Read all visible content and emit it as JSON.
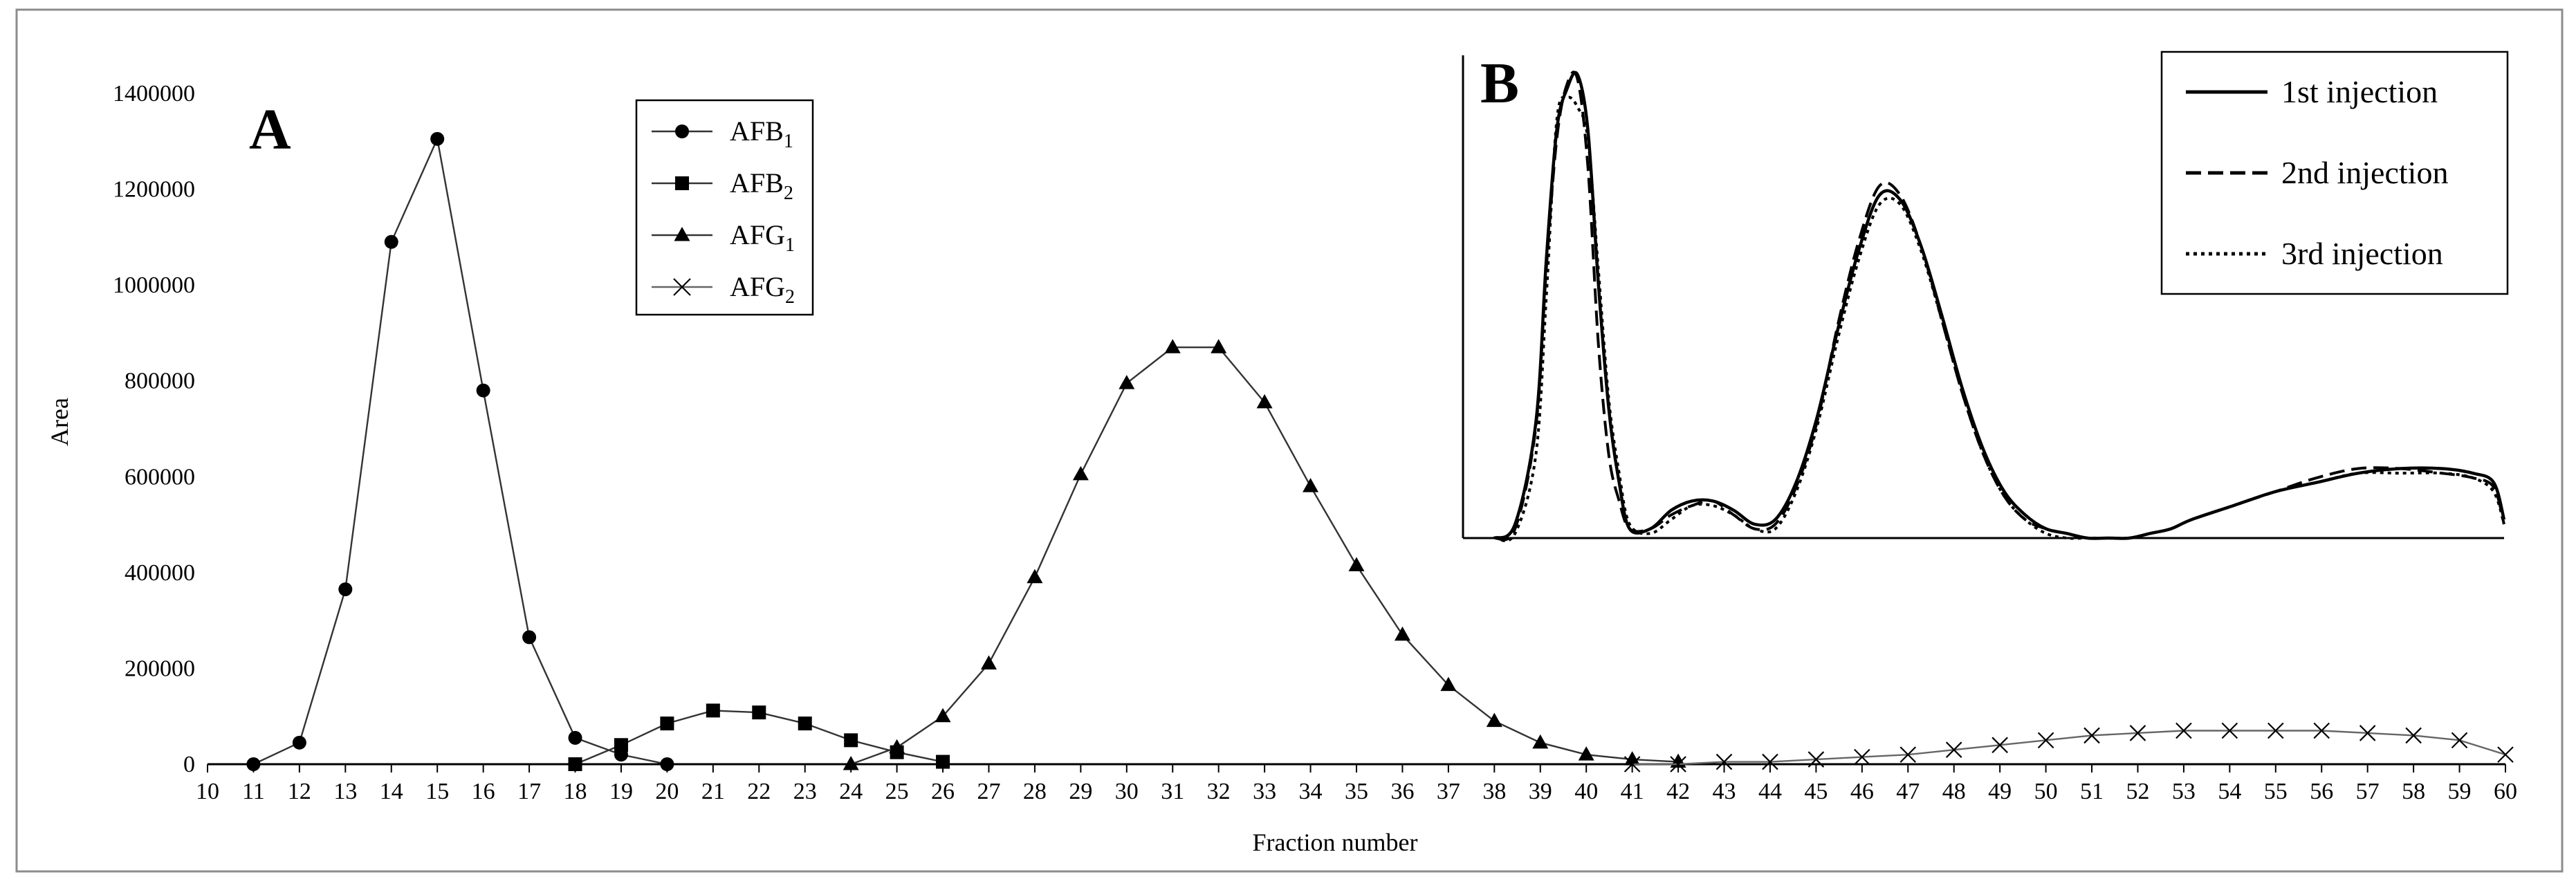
{
  "chart_data": [
    {
      "type": "line",
      "panel_label": "A",
      "xlabel": "Fraction number",
      "ylabel": "Area",
      "xlim": [
        10,
        60
      ],
      "ylim": [
        0,
        1400000
      ],
      "x_ticks": [
        10,
        11,
        12,
        13,
        14,
        15,
        16,
        17,
        18,
        19,
        20,
        21,
        22,
        23,
        24,
        25,
        26,
        27,
        28,
        29,
        30,
        31,
        32,
        33,
        34,
        35,
        36,
        37,
        38,
        39,
        40,
        41,
        42,
        43,
        44,
        45,
        46,
        47,
        48,
        49,
        50,
        51,
        52,
        53,
        54,
        55,
        56,
        57,
        58,
        59,
        60
      ],
      "y_ticks": [
        0,
        200000,
        400000,
        600000,
        800000,
        1000000,
        1200000,
        1400000
      ],
      "grid": false,
      "legend_position": "top-center",
      "series": [
        {
          "name": "AFB",
          "subscript": "1",
          "marker": "circle",
          "x": [
            11,
            12,
            13,
            14,
            15,
            16,
            17,
            18,
            19,
            20
          ],
          "y": [
            0,
            45000,
            365000,
            1090000,
            1305000,
            780000,
            265000,
            55000,
            20000,
            0
          ]
        },
        {
          "name": "AFB",
          "subscript": "2",
          "marker": "square",
          "x": [
            18,
            19,
            20,
            21,
            22,
            23,
            24,
            25,
            26
          ],
          "y": [
            0,
            40000,
            85000,
            112000,
            108000,
            85000,
            50000,
            25000,
            5000
          ]
        },
        {
          "name": "AFG",
          "subscript": "1",
          "marker": "triangle",
          "x": [
            24,
            25,
            26,
            27,
            28,
            29,
            30,
            31,
            32,
            33,
            34,
            35,
            36,
            37,
            38,
            39,
            40,
            41,
            42
          ],
          "y": [
            0,
            35000,
            100000,
            210000,
            390000,
            605000,
            795000,
            870000,
            870000,
            755000,
            580000,
            415000,
            270000,
            165000,
            90000,
            45000,
            20000,
            10000,
            5000
          ]
        },
        {
          "name": "AFG",
          "subscript": "2",
          "marker": "x",
          "x": [
            41,
            42,
            43,
            44,
            45,
            46,
            47,
            48,
            49,
            50,
            51,
            52,
            53,
            54,
            55,
            56,
            57,
            58,
            59,
            60
          ],
          "y": [
            0,
            0,
            5000,
            5000,
            10000,
            15000,
            20000,
            30000,
            40000,
            50000,
            60000,
            65000,
            70000,
            70000,
            70000,
            70000,
            65000,
            60000,
            50000,
            20000
          ]
        }
      ]
    },
    {
      "type": "line",
      "panel_label": "B",
      "axes_ticks_shown": false,
      "xlim": [
        0,
        100
      ],
      "ylim": [
        0,
        100
      ],
      "legend_position": "top-right",
      "series": [
        {
          "name": "1st injection",
          "line_style": "solid",
          "x": [
            3,
            5,
            7,
            8,
            9,
            10,
            11,
            12,
            13,
            14,
            15,
            16,
            18,
            20,
            22,
            24,
            26,
            28,
            30,
            32,
            34,
            36,
            38,
            40,
            42,
            44,
            46,
            48,
            50,
            52,
            54,
            56,
            58,
            60,
            62,
            64,
            66,
            68,
            70,
            74,
            78,
            82,
            86,
            90,
            94,
            97,
            99,
            100
          ],
          "y": [
            0,
            3,
            25,
            60,
            88,
            97,
            100,
            88,
            55,
            28,
            12,
            2,
            2,
            6,
            8,
            8,
            6,
            3,
            4,
            12,
            26,
            45,
            62,
            74,
            73,
            63,
            48,
            32,
            19,
            10,
            5,
            2,
            1,
            0,
            0,
            0,
            1,
            2,
            4,
            7,
            10,
            12,
            14,
            15,
            15,
            14,
            12,
            4
          ]
        },
        {
          "name": "2nd injection",
          "line_style": "dashed",
          "x": [
            3,
            5,
            7,
            8,
            9,
            10,
            11,
            12,
            13,
            14,
            15,
            16,
            18,
            20,
            22,
            24,
            26,
            28,
            30,
            32,
            34,
            36,
            38,
            40,
            42,
            44,
            46,
            48,
            50,
            52,
            54,
            56,
            58,
            60,
            62,
            64,
            66,
            68,
            70,
            74,
            78,
            82,
            86,
            90,
            94,
            97,
            99,
            100
          ],
          "y": [
            0,
            2,
            24,
            58,
            86,
            98,
            99,
            80,
            42,
            18,
            8,
            2,
            2,
            5,
            7,
            8,
            5,
            2,
            3,
            11,
            25,
            46,
            64,
            76,
            74,
            63,
            47,
            31,
            18,
            9,
            4,
            2,
            1,
            0,
            0,
            0,
            1,
            2,
            4,
            7,
            10,
            13,
            15,
            15,
            14,
            13,
            11,
            3
          ]
        },
        {
          "name": "3rd injection",
          "line_style": "dotted",
          "x": [
            3,
            5,
            7,
            8,
            9,
            10,
            11,
            12,
            13,
            14,
            15,
            16,
            18,
            20,
            22,
            24,
            26,
            28,
            30,
            32,
            34,
            36,
            38,
            40,
            42,
            44,
            46,
            48,
            50,
            52,
            54,
            56,
            58,
            60,
            62,
            64,
            66,
            68,
            70,
            74,
            78,
            82,
            86,
            90,
            94,
            97,
            99,
            100
          ],
          "y": [
            0,
            1,
            18,
            52,
            90,
            95,
            93,
            86,
            58,
            30,
            14,
            3,
            1,
            4,
            7,
            7,
            5,
            2,
            2,
            10,
            24,
            43,
            60,
            72,
            72,
            62,
            47,
            31,
            18,
            9,
            4,
            1,
            0,
            0,
            0,
            0,
            1,
            2,
            4,
            7,
            10,
            12,
            14,
            14,
            14,
            13,
            10,
            3
          ]
        }
      ]
    }
  ]
}
